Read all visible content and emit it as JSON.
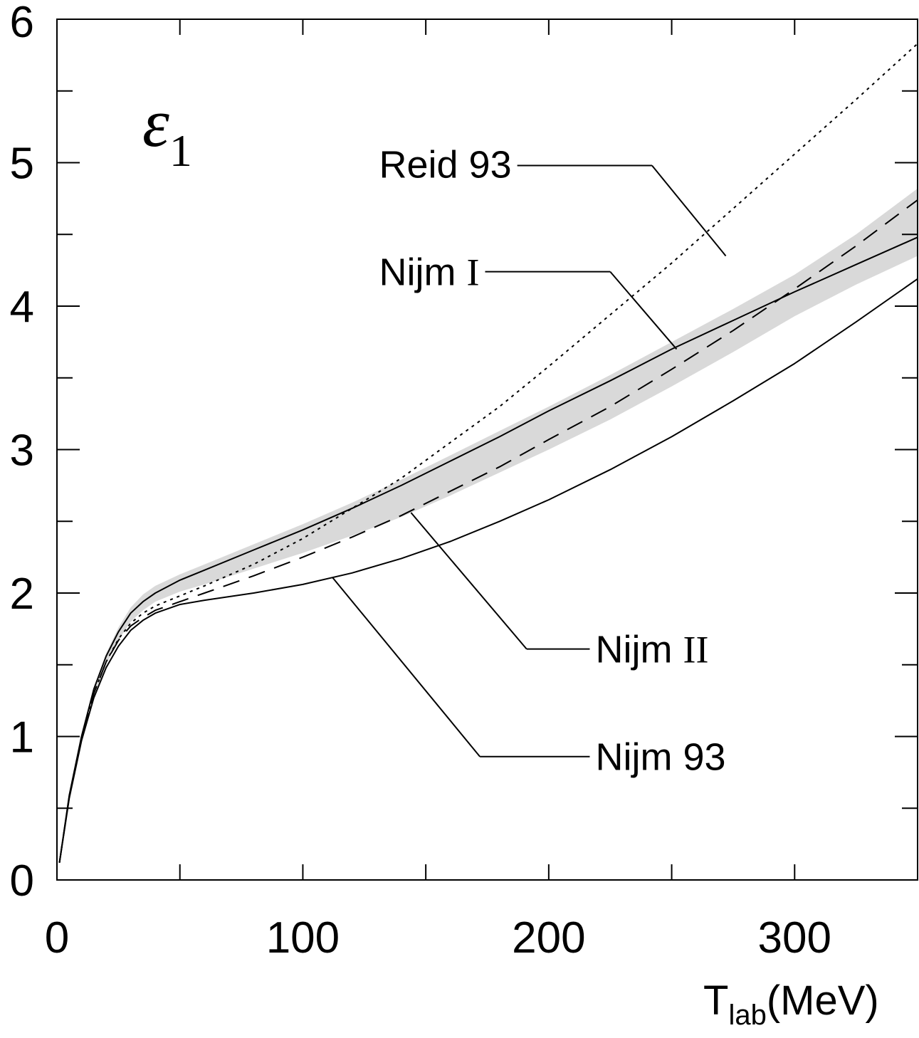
{
  "chart_data": {
    "type": "line",
    "title": "ε",
    "title_subscript": "1",
    "xlabel": "T",
    "xlabel_subscript": "lab",
    "xlabel_unit": "(MeV)",
    "xlim": [
      0,
      350
    ],
    "ylim": [
      0,
      6
    ],
    "x_ticks": [
      0,
      100,
      200,
      300
    ],
    "x_tick_labels": [
      "0",
      "100",
      "200",
      "300"
    ],
    "x_minor_step": 50,
    "y_ticks": [
      0,
      1,
      2,
      3,
      4,
      5,
      6
    ],
    "y_tick_labels": [
      "0",
      "1",
      "2",
      "3",
      "4",
      "5",
      "6"
    ],
    "y_minor_step": 0.5,
    "grid": false,
    "band": {
      "color": "#d9d9d9",
      "x": [
        1,
        5,
        10,
        15,
        20,
        25,
        30,
        35,
        40,
        50,
        60,
        80,
        100,
        120,
        140,
        160,
        180,
        200,
        225,
        250,
        275,
        300,
        325,
        350
      ],
      "upper": [
        0.13,
        0.6,
        1.02,
        1.34,
        1.58,
        1.76,
        1.9,
        1.99,
        2.05,
        2.13,
        2.2,
        2.34,
        2.48,
        2.63,
        2.79,
        2.96,
        3.13,
        3.3,
        3.52,
        3.75,
        3.98,
        4.22,
        4.5,
        4.82
      ],
      "lower": [
        0.11,
        0.56,
        0.96,
        1.27,
        1.5,
        1.67,
        1.8,
        1.88,
        1.94,
        2.01,
        2.06,
        2.17,
        2.28,
        2.4,
        2.53,
        2.68,
        2.84,
        3.0,
        3.21,
        3.44,
        3.68,
        3.93,
        4.15,
        4.35
      ]
    },
    "series": [
      {
        "name": "Reid 93",
        "dash": "4 6",
        "x": [
          1,
          5,
          10,
          15,
          20,
          25,
          30,
          35,
          40,
          50,
          60,
          80,
          100,
          120,
          140,
          160,
          180,
          200,
          225,
          250,
          275,
          300,
          325,
          350
        ],
        "y": [
          0.12,
          0.58,
          0.98,
          1.3,
          1.52,
          1.68,
          1.79,
          1.86,
          1.91,
          1.98,
          2.05,
          2.2,
          2.38,
          2.59,
          2.8,
          3.05,
          3.3,
          3.58,
          3.94,
          4.3,
          4.68,
          5.06,
          5.44,
          5.83
        ]
      },
      {
        "name": "Nijm I",
        "dash": "",
        "x": [
          1,
          5,
          10,
          15,
          20,
          25,
          30,
          35,
          40,
          50,
          60,
          80,
          100,
          120,
          140,
          160,
          180,
          200,
          225,
          250,
          275,
          300,
          325,
          350
        ],
        "y": [
          0.12,
          0.59,
          1.0,
          1.33,
          1.56,
          1.73,
          1.86,
          1.94,
          2.0,
          2.09,
          2.16,
          2.3,
          2.44,
          2.59,
          2.75,
          2.92,
          3.09,
          3.27,
          3.48,
          3.7,
          3.9,
          4.1,
          4.29,
          4.48
        ]
      },
      {
        "name": "Nijm II",
        "dash": "24 14",
        "x": [
          1,
          5,
          10,
          15,
          20,
          25,
          30,
          35,
          40,
          50,
          60,
          80,
          100,
          120,
          140,
          160,
          180,
          200,
          225,
          250,
          275,
          300,
          325,
          350
        ],
        "y": [
          0.12,
          0.58,
          0.98,
          1.3,
          1.52,
          1.67,
          1.77,
          1.83,
          1.88,
          1.94,
          2.0,
          2.12,
          2.25,
          2.39,
          2.54,
          2.71,
          2.88,
          3.07,
          3.3,
          3.56,
          3.83,
          4.12,
          4.42,
          4.74
        ]
      },
      {
        "name": "Nijm 93",
        "dash": "",
        "x": [
          1,
          5,
          10,
          15,
          20,
          25,
          30,
          35,
          40,
          50,
          60,
          80,
          100,
          120,
          140,
          160,
          180,
          200,
          225,
          250,
          275,
          300,
          325,
          350
        ],
        "y": [
          0.12,
          0.57,
          0.97,
          1.27,
          1.48,
          1.63,
          1.74,
          1.81,
          1.86,
          1.92,
          1.95,
          2.0,
          2.06,
          2.14,
          2.24,
          2.36,
          2.5,
          2.65,
          2.86,
          3.09,
          3.34,
          3.6,
          3.89,
          4.19
        ]
      }
    ],
    "annotations": [
      {
        "series": "Reid 93",
        "text": "Reid 93",
        "roman": false,
        "label_x": 131,
        "label_y": 4.99,
        "knee_x": 242,
        "knee_y": 4.98,
        "point_x": 272,
        "point_y": 4.35
      },
      {
        "series": "Nijm I",
        "text": "Nijm ",
        "roman_suffix": "I",
        "label_x": 131,
        "label_y": 4.24,
        "knee_x": 225,
        "knee_y": 4.24,
        "point_x": 252,
        "point_y": 3.7
      },
      {
        "series": "Nijm II",
        "text": "Nijm ",
        "roman_suffix": "II",
        "label_x": 219,
        "label_y": 1.61,
        "knee_x": 191,
        "knee_y": 1.61,
        "point_x": 144,
        "point_y": 2.56
      },
      {
        "series": "Nijm 93",
        "text": "Nijm 93",
        "roman": false,
        "label_x": 219,
        "label_y": 0.86,
        "knee_x": 172,
        "knee_y": 0.86,
        "point_x": 112,
        "point_y": 2.11
      }
    ]
  }
}
